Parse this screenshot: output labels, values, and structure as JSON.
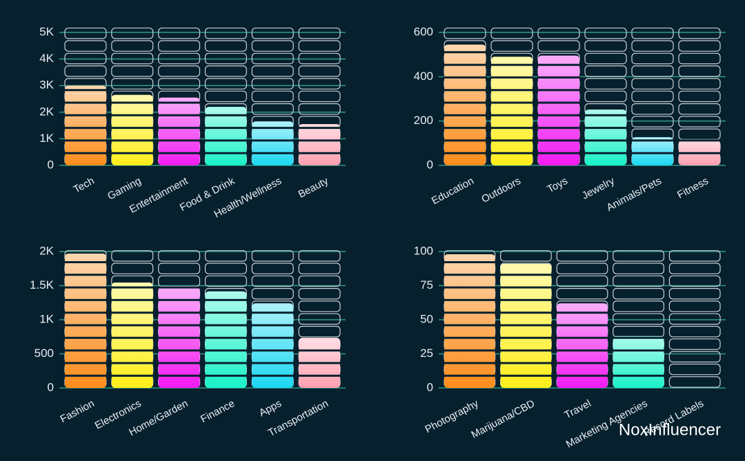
{
  "chart_data": [
    {
      "type": "bar",
      "categories": [
        "Tech",
        "Gaming",
        "Entertainment",
        "Food & Drink",
        "Health/Wellness",
        "Beauty"
      ],
      "values": [
        3000,
        2650,
        2550,
        2200,
        1650,
        1550
      ],
      "colors": [
        "#ff8c1a",
        "#ffee1a",
        "#f21af2",
        "#1af2c8",
        "#1ad8f2",
        "#ff9fb0"
      ],
      "ylim": [
        0,
        5000
      ],
      "yticks": [
        0,
        {
          "value": 1000,
          "label": "1K"
        },
        {
          "value": 2000,
          "label": "2K"
        },
        {
          "value": 3000,
          "label": "3K"
        },
        {
          "value": 4000,
          "label": "4K"
        },
        {
          "value": 5000,
          "label": "5K"
        }
      ],
      "grid": true
    },
    {
      "type": "bar",
      "categories": [
        "Education",
        "Outdoors",
        "Toys",
        "Jewelry",
        "Animals/Pets",
        "Fitness"
      ],
      "values": [
        545,
        490,
        495,
        252,
        127,
        115
      ],
      "colors": [
        "#ff8c1a",
        "#ffee1a",
        "#f21af2",
        "#1af2c8",
        "#1ad8f2",
        "#ff9fb0"
      ],
      "ylim": [
        0,
        600
      ],
      "yticks": [
        0,
        200,
        400,
        600
      ],
      "grid": true
    },
    {
      "type": "bar",
      "categories": [
        "Fashion",
        "Electronics",
        "Home/Garden",
        "Finance",
        "Apps",
        "Transportation"
      ],
      "values": [
        1970,
        1545,
        1495,
        1415,
        1240,
        735
      ],
      "colors": [
        "#ff8c1a",
        "#ffee1a",
        "#f21af2",
        "#1af2c8",
        "#1ad8f2",
        "#ff9fb0"
      ],
      "ylim": [
        0,
        2000
      ],
      "yticks": [
        0,
        500,
        {
          "value": 1000,
          "label": "1K"
        },
        {
          "value": 1500,
          "label": "1.5K"
        },
        {
          "value": 2000,
          "label": "2K"
        }
      ],
      "grid": true
    },
    {
      "type": "bar",
      "categories": [
        "Photography",
        "Marijuana/CBD",
        "Travel",
        "Marketing Agencies",
        "Record Labels"
      ],
      "values": [
        98,
        91,
        62,
        38,
        0
      ],
      "colors": [
        "#ff8c1a",
        "#ffee1a",
        "#f21af2",
        "#1af2c8",
        "#1ad8f2"
      ],
      "ylim": [
        0,
        100
      ],
      "yticks": [
        0,
        25,
        50,
        75,
        100
      ],
      "grid": true
    }
  ],
  "watermark": "NoxInfluencer"
}
